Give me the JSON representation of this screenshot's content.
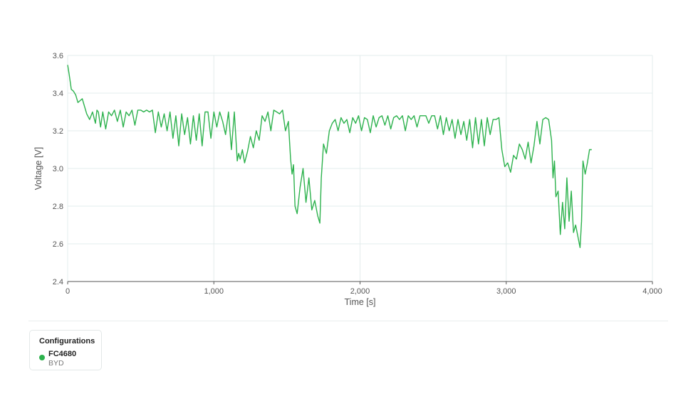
{
  "chart_data": {
    "type": "line",
    "xlabel": "Time [s]",
    "ylabel": "Voltage [V]",
    "xlim": [
      0,
      4000
    ],
    "ylim": [
      2.4,
      3.6
    ],
    "xticks": [
      0,
      1000,
      2000,
      3000,
      4000
    ],
    "xtick_labels": [
      "0",
      "1,000",
      "2,000",
      "3,000",
      "4,000"
    ],
    "yticks": [
      2.4,
      2.6,
      2.8,
      3.0,
      3.2,
      3.4,
      3.6
    ],
    "ytick_labels": [
      "2.4",
      "2.6",
      "2.8",
      "3.0",
      "3.2",
      "3.4",
      "3.6"
    ],
    "grid": true,
    "series": [
      {
        "name": "FC4680",
        "color": "#2db24d",
        "x": [
          0,
          10,
          25,
          40,
          55,
          70,
          85,
          100,
          115,
          130,
          150,
          170,
          190,
          200,
          210,
          225,
          240,
          260,
          280,
          300,
          320,
          340,
          360,
          380,
          400,
          420,
          440,
          460,
          480,
          500,
          520,
          540,
          560,
          580,
          600,
          620,
          640,
          660,
          680,
          700,
          720,
          740,
          760,
          780,
          800,
          820,
          840,
          860,
          880,
          900,
          920,
          940,
          960,
          980,
          1000,
          1020,
          1040,
          1060,
          1080,
          1100,
          1120,
          1140,
          1160,
          1170,
          1180,
          1195,
          1210,
          1230,
          1250,
          1270,
          1290,
          1310,
          1330,
          1350,
          1370,
          1390,
          1410,
          1430,
          1450,
          1470,
          1490,
          1510,
          1525,
          1535,
          1545,
          1555,
          1570,
          1590,
          1610,
          1630,
          1650,
          1670,
          1690,
          1710,
          1725,
          1735,
          1750,
          1770,
          1790,
          1810,
          1830,
          1850,
          1870,
          1890,
          1910,
          1930,
          1950,
          1970,
          1990,
          2010,
          2030,
          2050,
          2070,
          2090,
          2110,
          2130,
          2150,
          2170,
          2190,
          2210,
          2230,
          2250,
          2270,
          2290,
          2310,
          2330,
          2350,
          2370,
          2390,
          2410,
          2430,
          2450,
          2470,
          2490,
          2510,
          2530,
          2550,
          2570,
          2590,
          2610,
          2630,
          2650,
          2670,
          2690,
          2710,
          2730,
          2750,
          2770,
          2790,
          2810,
          2830,
          2850,
          2870,
          2890,
          2910,
          2930,
          2950,
          2970,
          2990,
          3010,
          3030,
          3050,
          3070,
          3090,
          3110,
          3130,
          3150,
          3170,
          3190,
          3210,
          3230,
          3250,
          3270,
          3290,
          3310,
          3320,
          3330,
          3340,
          3355,
          3370,
          3385,
          3400,
          3415,
          3430,
          3445,
          3460,
          3475,
          3490,
          3505,
          3515,
          3525,
          3540,
          3555,
          3570,
          3585
        ],
        "y": [
          3.55,
          3.5,
          3.42,
          3.41,
          3.39,
          3.35,
          3.36,
          3.37,
          3.33,
          3.29,
          3.26,
          3.3,
          3.24,
          3.31,
          3.3,
          3.22,
          3.3,
          3.21,
          3.3,
          3.28,
          3.31,
          3.25,
          3.31,
          3.22,
          3.3,
          3.28,
          3.31,
          3.23,
          3.31,
          3.31,
          3.3,
          3.31,
          3.3,
          3.31,
          3.19,
          3.3,
          3.22,
          3.29,
          3.2,
          3.3,
          3.16,
          3.28,
          3.12,
          3.29,
          3.18,
          3.27,
          3.13,
          3.28,
          3.15,
          3.29,
          3.12,
          3.3,
          3.3,
          3.16,
          3.3,
          3.22,
          3.3,
          3.25,
          3.18,
          3.3,
          3.1,
          3.3,
          3.04,
          3.08,
          3.05,
          3.1,
          3.03,
          3.09,
          3.17,
          3.11,
          3.2,
          3.15,
          3.28,
          3.25,
          3.3,
          3.2,
          3.31,
          3.3,
          3.29,
          3.31,
          3.2,
          3.25,
          3.05,
          2.97,
          3.02,
          2.8,
          2.76,
          2.9,
          3.0,
          2.82,
          2.95,
          2.78,
          2.83,
          2.75,
          2.71,
          2.95,
          3.13,
          3.08,
          3.2,
          3.24,
          3.26,
          3.2,
          3.27,
          3.24,
          3.26,
          3.19,
          3.27,
          3.24,
          3.28,
          3.2,
          3.27,
          3.26,
          3.19,
          3.28,
          3.22,
          3.27,
          3.28,
          3.23,
          3.28,
          3.21,
          3.27,
          3.28,
          3.26,
          3.28,
          3.2,
          3.28,
          3.26,
          3.28,
          3.22,
          3.28,
          3.28,
          3.28,
          3.24,
          3.28,
          3.28,
          3.21,
          3.28,
          3.18,
          3.27,
          3.2,
          3.26,
          3.16,
          3.26,
          3.18,
          3.25,
          3.15,
          3.26,
          3.11,
          3.27,
          3.13,
          3.26,
          3.12,
          3.27,
          3.18,
          3.26,
          3.26,
          3.27,
          3.1,
          3.01,
          3.03,
          2.98,
          3.07,
          3.05,
          3.13,
          3.1,
          3.05,
          3.14,
          3.03,
          3.12,
          3.25,
          3.13,
          3.26,
          3.27,
          3.26,
          3.15,
          2.95,
          3.04,
          2.85,
          2.88,
          2.65,
          2.82,
          2.68,
          2.95,
          2.72,
          2.88,
          2.66,
          2.7,
          2.64,
          2.58,
          2.72,
          3.04,
          2.97,
          3.03,
          3.1,
          3.1
        ]
      }
    ]
  },
  "legend": {
    "title": "Configurations",
    "items": [
      {
        "name": "FC4680",
        "subtitle": "BYD",
        "color": "#2db24d"
      }
    ]
  }
}
